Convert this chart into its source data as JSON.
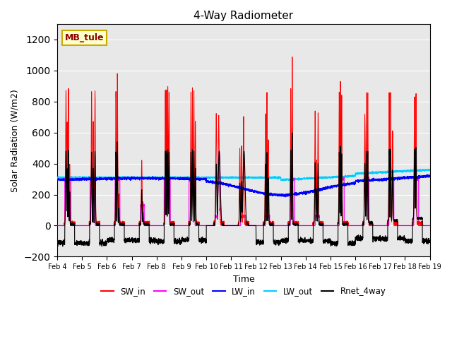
{
  "title": "4-Way Radiometer",
  "xlabel": "Time",
  "ylabel": "Solar Radiation (W/m2)",
  "ylim": [
    -200,
    1300
  ],
  "yticks": [
    -200,
    0,
    200,
    400,
    600,
    800,
    1000,
    1200
  ],
  "xtick_labels": [
    "Feb 4",
    "Feb 5",
    "Feb 6",
    "Feb 7",
    "Feb 8",
    "Feb 9",
    "Feb 10",
    "Feb 11",
    "Feb 12",
    "Feb 13",
    "Feb 14",
    "Feb 15",
    "Feb 16",
    "Feb 17",
    "Feb 18",
    "Feb 19"
  ],
  "station_label": "MB_tule",
  "legend_entries": [
    "SW_in",
    "SW_out",
    "LW_in",
    "LW_out",
    "Rnet_4way"
  ],
  "colors": {
    "SW_in": "#ff0000",
    "SW_out": "#ff00ff",
    "LW_in": "#0000ff",
    "LW_out": "#00ccff",
    "Rnet_4way": "#000000"
  },
  "bg_color": "#e8e8e8",
  "n_days": 15,
  "pts_per_day": 288
}
